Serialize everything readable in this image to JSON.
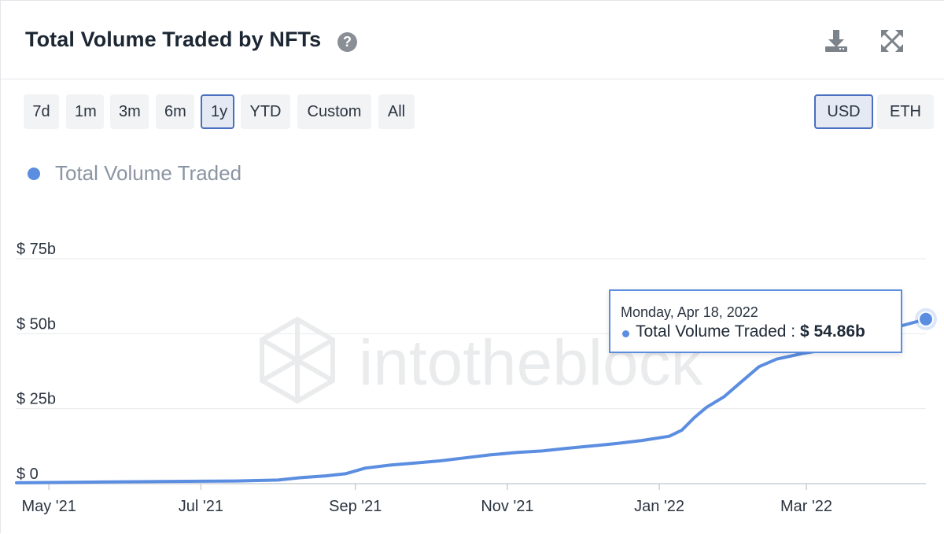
{
  "header": {
    "title": "Total Volume Traded by NFTs",
    "help_icon": "?",
    "download_icon": "download-icon",
    "fullscreen_icon": "fullscreen-icon"
  },
  "range_buttons": [
    {
      "label": "7d",
      "active": false
    },
    {
      "label": "1m",
      "active": false
    },
    {
      "label": "3m",
      "active": false
    },
    {
      "label": "6m",
      "active": false
    },
    {
      "label": "1y",
      "active": true
    },
    {
      "label": "YTD",
      "active": false
    },
    {
      "label": "Custom",
      "active": false
    },
    {
      "label": "All",
      "active": false
    }
  ],
  "currency_buttons": [
    {
      "label": "USD",
      "active": true
    },
    {
      "label": "ETH",
      "active": false
    }
  ],
  "watermark": "intotheblock",
  "tooltip": {
    "date": "Monday, Apr 18, 2022",
    "series": "Total Volume Traded",
    "separator": " : ",
    "value": "$ 54.86b"
  },
  "colors": {
    "line": "#5b8de0",
    "accent": "#4a6fbf"
  },
  "chart_data": {
    "type": "line",
    "legend": [
      "Total Volume Traded"
    ],
    "legend_position": "top-left",
    "grid": true,
    "y_ticks": [
      {
        "value": 0,
        "label": "$ 0"
      },
      {
        "value": 25,
        "label": "$ 25b"
      },
      {
        "value": 50,
        "label": "$ 50b"
      },
      {
        "value": 75,
        "label": "$ 75b"
      }
    ],
    "x_ticks": [
      {
        "date": "2021-05-01",
        "label": "May '21"
      },
      {
        "date": "2021-07-01",
        "label": "Jul '21"
      },
      {
        "date": "2021-09-01",
        "label": "Sep '21"
      },
      {
        "date": "2021-11-01",
        "label": "Nov '21"
      },
      {
        "date": "2022-01-01",
        "label": "Jan '22"
      },
      {
        "date": "2022-03-01",
        "label": "Mar '22"
      }
    ],
    "xlim": [
      "2021-04-18",
      "2022-04-18"
    ],
    "ylim": [
      0,
      75
    ],
    "series": [
      {
        "name": "Total Volume Traded",
        "unit": "billion USD",
        "points": [
          [
            "2021-04-18",
            0.3
          ],
          [
            "2021-05-15",
            0.5
          ],
          [
            "2021-06-15",
            0.7
          ],
          [
            "2021-07-15",
            0.9
          ],
          [
            "2021-08-01",
            1.2
          ],
          [
            "2021-08-10",
            2.0
          ],
          [
            "2021-08-20",
            2.6
          ],
          [
            "2021-08-28",
            3.3
          ],
          [
            "2021-09-05",
            5.2
          ],
          [
            "2021-09-15",
            6.2
          ],
          [
            "2021-09-25",
            6.9
          ],
          [
            "2021-10-05",
            7.6
          ],
          [
            "2021-10-15",
            8.6
          ],
          [
            "2021-10-25",
            9.6
          ],
          [
            "2021-11-05",
            10.4
          ],
          [
            "2021-11-15",
            10.9
          ],
          [
            "2021-11-25",
            11.8
          ],
          [
            "2021-12-05",
            12.6
          ],
          [
            "2021-12-15",
            13.4
          ],
          [
            "2021-12-25",
            14.4
          ],
          [
            "2022-01-05",
            15.8
          ],
          [
            "2022-01-10",
            17.8
          ],
          [
            "2022-01-15",
            22.0
          ],
          [
            "2022-01-20",
            25.5
          ],
          [
            "2022-01-27",
            29.0
          ],
          [
            "2022-02-03",
            34.0
          ],
          [
            "2022-02-10",
            39.0
          ],
          [
            "2022-02-17",
            41.5
          ],
          [
            "2022-02-28",
            43.5
          ],
          [
            "2022-03-15",
            45.5
          ],
          [
            "2022-04-01",
            51.0
          ],
          [
            "2022-04-18",
            54.86
          ]
        ]
      }
    ]
  }
}
